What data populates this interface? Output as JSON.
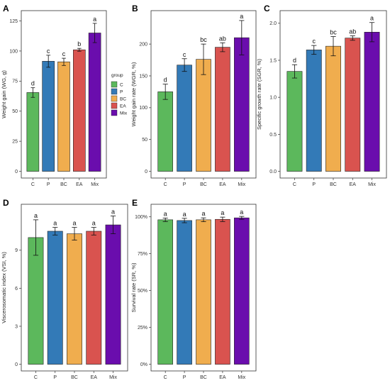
{
  "colors": {
    "C": "#5cb85c",
    "P": "#337ab7",
    "BC": "#f0ad4e",
    "EA": "#d9534f",
    "Mix": "#6a0dad"
  },
  "legend": {
    "title": "group",
    "items": [
      "C",
      "P",
      "BC",
      "EA",
      "Mix"
    ]
  },
  "chart_data": [
    {
      "panel": "A",
      "type": "bar",
      "categories": [
        "C",
        "P",
        "BC",
        "EA",
        "Mix"
      ],
      "values": [
        65.5,
        91.5,
        91,
        101,
        115
      ],
      "errors": [
        4,
        5,
        3,
        1.2,
        8
      ],
      "letters": [
        "d",
        "c",
        "c",
        "b",
        "a"
      ],
      "ylabel": "Weight gain (WG, g)",
      "ylim": [
        0,
        128
      ],
      "yticks": [
        0,
        25,
        50,
        75,
        100,
        125
      ],
      "grid": false
    },
    {
      "panel": "B",
      "type": "bar",
      "categories": [
        "C",
        "P",
        "BC",
        "EA",
        "Mix"
      ],
      "values": [
        125,
        167,
        176,
        195,
        210
      ],
      "errors": [
        12,
        10,
        24,
        7,
        27
      ],
      "letters": [
        "d",
        "c",
        "bc",
        "ab",
        "a"
      ],
      "ylabel": "Weight gain rate (WGR, %)",
      "ylim": [
        0,
        242
      ],
      "yticks": [
        0,
        50,
        100,
        150,
        200
      ],
      "grid": false
    },
    {
      "panel": "C",
      "type": "bar",
      "categories": [
        "C",
        "P",
        "BC",
        "EA",
        "Mix"
      ],
      "values": [
        1.35,
        1.64,
        1.69,
        1.8,
        1.88
      ],
      "errors": [
        0.09,
        0.06,
        0.13,
        0.03,
        0.13
      ],
      "letters": [
        "d",
        "c",
        "bc",
        "ab",
        "a"
      ],
      "ylabel": "Specific growth rate (SGR, %)",
      "ylim": [
        0,
        2.08
      ],
      "yticks": [
        0.0,
        0.5,
        1.0,
        1.5,
        2.0
      ],
      "ytick_format": "1dp",
      "grid": false
    },
    {
      "panel": "D",
      "type": "bar",
      "categories": [
        "C",
        "P",
        "BC",
        "EA",
        "Mix"
      ],
      "values": [
        10,
        10.5,
        10.3,
        10.5,
        11
      ],
      "errors": [
        1.4,
        0.3,
        0.5,
        0.3,
        0.7
      ],
      "letters": [
        "a",
        "a",
        "a",
        "a",
        "a"
      ],
      "ylabel": "Viscerosomatic index (VSI, %)",
      "ylim": [
        0,
        12.1
      ],
      "yticks": [
        0,
        3,
        6,
        9
      ],
      "grid": false
    },
    {
      "panel": "E",
      "type": "bar",
      "categories": [
        "C",
        "P",
        "BC",
        "EA",
        "Mix"
      ],
      "values": [
        98,
        97.5,
        98,
        98.3,
        99.3
      ],
      "errors": [
        1.2,
        1.5,
        1.3,
        1.5,
        1.0
      ],
      "letters": [
        "a",
        "a",
        "a",
        "a",
        "a"
      ],
      "ylabel": "Survival rate (SR, %)",
      "ylim": [
        0,
        104
      ],
      "yticks": [
        0,
        25,
        50,
        75,
        100
      ],
      "ytick_suffix": "%",
      "grid": false
    }
  ]
}
